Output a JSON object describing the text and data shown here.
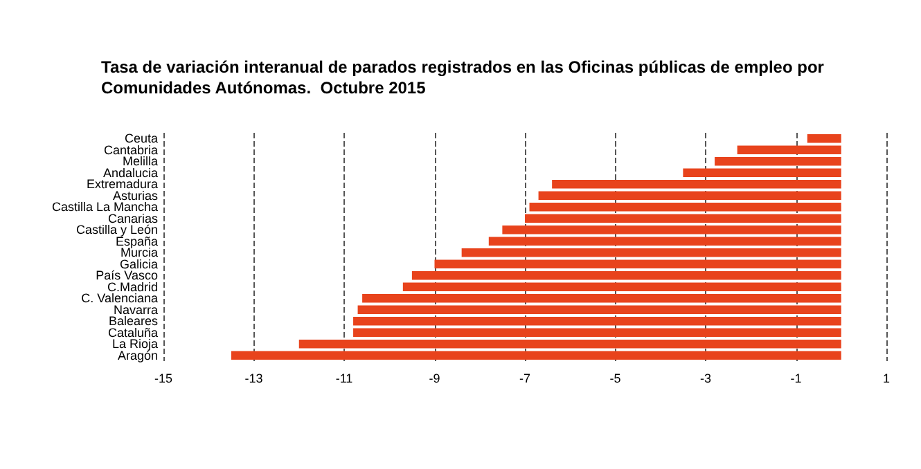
{
  "chart_data": {
    "type": "bar",
    "orientation": "horizontal",
    "title": "Tasa de variación interanual de parados registrados en las Oficinas públicas de empleo por\nComunidades Autónomas.  Octubre 2015",
    "categories": [
      "Ceuta",
      "Cantabria",
      "Melilla",
      "Andalucia",
      "Extremadura",
      "Asturias",
      "Castilla La Mancha",
      "Canarias",
      "Castilla y León",
      "España",
      "Murcia",
      "Galicia",
      "País Vasco",
      "C.Madrid",
      "C. Valenciana",
      "Navarra",
      "Baleares",
      "Cataluña",
      "La Rioja",
      "Aragón"
    ],
    "values": [
      -0.75,
      -2.3,
      -2.8,
      -3.5,
      -6.4,
      -6.7,
      -6.9,
      -7.0,
      -7.5,
      -7.8,
      -8.4,
      -9.0,
      -9.5,
      -9.7,
      -10.6,
      -10.7,
      -10.8,
      -10.8,
      -12.0,
      -13.5
    ],
    "color": "#e8431c",
    "xlim": [
      -15,
      1
    ],
    "xticks": [
      -15,
      -13,
      -11,
      -9,
      -7,
      -5,
      -3,
      -1,
      1
    ],
    "grid": "x",
    "line_style": "dashed"
  }
}
